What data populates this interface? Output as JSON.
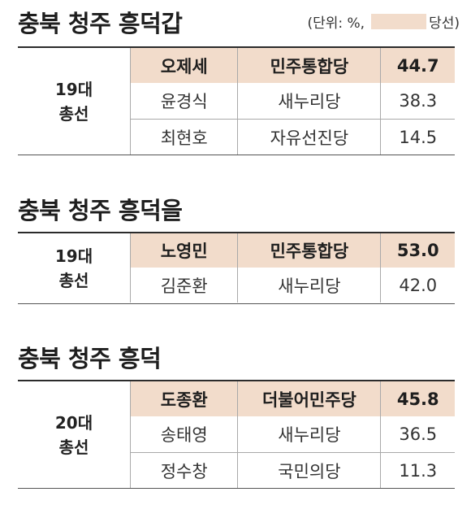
{
  "unit_note": {
    "prefix": "(단위: %,",
    "legend_label": "당선)"
  },
  "colors": {
    "winner_fill": "#f2dccb",
    "rule": "#2b2b2b"
  },
  "sections": [
    {
      "title": "충북 청주 흥덕갑",
      "election": [
        "19대",
        "총선"
      ],
      "rows": [
        {
          "name": "오제세",
          "party": "민주통합당",
          "pct": "44.7",
          "winner": true
        },
        {
          "name": "윤경식",
          "party": "새누리당",
          "pct": "38.3",
          "winner": false
        },
        {
          "name": "최현호",
          "party": "자유선진당",
          "pct": "14.5",
          "winner": false
        }
      ]
    },
    {
      "title": "충북 청주 흥덕을",
      "election": [
        "19대",
        "총선"
      ],
      "rows": [
        {
          "name": "노영민",
          "party": "민주통합당",
          "pct": "53.0",
          "winner": true
        },
        {
          "name": "김준환",
          "party": "새누리당",
          "pct": "42.0",
          "winner": false
        }
      ]
    },
    {
      "title": "충북 청주 흥덕",
      "election": [
        "20대",
        "총선"
      ],
      "rows": [
        {
          "name": "도종환",
          "party": "더불어민주당",
          "pct": "45.8",
          "winner": true
        },
        {
          "name": "송태영",
          "party": "새누리당",
          "pct": "36.5",
          "winner": false
        },
        {
          "name": "정수창",
          "party": "국민의당",
          "pct": "11.3",
          "winner": false
        }
      ]
    }
  ]
}
